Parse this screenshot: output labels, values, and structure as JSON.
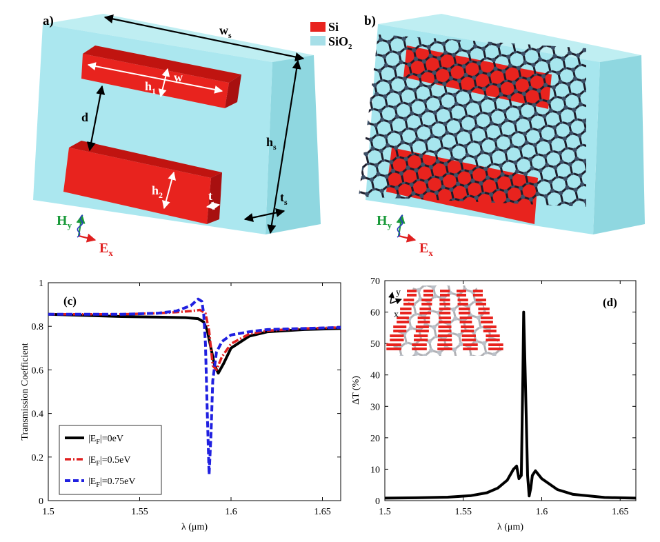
{
  "panels": {
    "a": {
      "label": "a)",
      "legend": [
        {
          "name": "Si",
          "color": "#e8231e"
        },
        {
          "name": "SiO",
          "sub": "2",
          "color": "#a7dfe8"
        }
      ],
      "dims": {
        "ws": {
          "main": "w",
          "sub": "s"
        },
        "hs": {
          "main": "h",
          "sub": "s"
        },
        "ts": {
          "main": "t",
          "sub": "s"
        },
        "h1": {
          "main": "h",
          "sub": "1"
        },
        "h2": {
          "main": "h",
          "sub": "2"
        },
        "w": "w",
        "d": "d",
        "t": "t"
      },
      "field_h": {
        "main": "H",
        "sub": "y"
      },
      "field_e": {
        "main": "E",
        "sub": "x"
      }
    },
    "b": {
      "label": "b)",
      "field_h": {
        "main": "H",
        "sub": "y"
      },
      "field_e": {
        "main": "E",
        "sub": "x"
      }
    }
  },
  "chart_data": [
    {
      "type": "line",
      "panel_label": "(c)",
      "xlabel": "λ (μm)",
      "ylabel": "Transmission Coefficient",
      "xlim": [
        1.5,
        1.66
      ],
      "ylim": [
        0,
        1
      ],
      "xticks": [
        "1.5",
        "1.55",
        "1.6",
        "1.65"
      ],
      "yticks": [
        "0",
        "0.2",
        "0.4",
        "0.6",
        "0.8",
        "1"
      ],
      "series": [
        {
          "name": "|E_F|=0eV",
          "legend_main": "|E",
          "legend_sub": "F",
          "legend_tail": "|=0eV",
          "color": "#000000",
          "dash": "solid",
          "x": [
            1.5,
            1.52,
            1.54,
            1.56,
            1.575,
            1.582,
            1.585,
            1.587,
            1.589,
            1.591,
            1.593,
            1.596,
            1.6,
            1.61,
            1.62,
            1.64,
            1.66
          ],
          "y": [
            0.855,
            0.85,
            0.845,
            0.842,
            0.84,
            0.835,
            0.82,
            0.78,
            0.7,
            0.62,
            0.585,
            0.63,
            0.7,
            0.755,
            0.775,
            0.785,
            0.79
          ]
        },
        {
          "name": "|E_F|=0.5eV",
          "legend_main": "|E",
          "legend_sub": "F",
          "legend_tail": "|=0.5eV",
          "color": "#e02020",
          "dash": "dashdot",
          "x": [
            1.5,
            1.52,
            1.54,
            1.56,
            1.57,
            1.578,
            1.583,
            1.586,
            1.588,
            1.59,
            1.592,
            1.595,
            1.6,
            1.61,
            1.62,
            1.64,
            1.66
          ],
          "y": [
            0.855,
            0.855,
            0.855,
            0.86,
            0.865,
            0.87,
            0.875,
            0.86,
            0.78,
            0.62,
            0.6,
            0.66,
            0.72,
            0.765,
            0.78,
            0.79,
            0.795
          ]
        },
        {
          "name": "|E_F|=0.75eV",
          "legend_main": "|E",
          "legend_sub": "F",
          "legend_tail": "|=0.75eV",
          "color": "#2020e0",
          "dash": "dashed",
          "x": [
            1.5,
            1.52,
            1.54,
            1.56,
            1.57,
            1.578,
            1.582,
            1.584,
            1.585,
            1.586,
            1.587,
            1.588,
            1.589,
            1.59,
            1.592,
            1.595,
            1.6,
            1.61,
            1.62,
            1.64,
            1.66
          ],
          "y": [
            0.855,
            0.855,
            0.855,
            0.86,
            0.87,
            0.895,
            0.925,
            0.915,
            0.86,
            0.72,
            0.4,
            0.12,
            0.3,
            0.55,
            0.68,
            0.73,
            0.76,
            0.775,
            0.785,
            0.79,
            0.795
          ]
        }
      ]
    },
    {
      "type": "line",
      "panel_label": "(d)",
      "xlabel": "λ (μm)",
      "ylabel": "ΔT (%)",
      "xlim": [
        1.5,
        1.66
      ],
      "ylim": [
        0,
        70
      ],
      "xticks": [
        "1.5",
        "1.55",
        "1.6",
        "1.65"
      ],
      "yticks": [
        "0",
        "10",
        "20",
        "30",
        "40",
        "50",
        "60",
        "70"
      ],
      "inset_axes": {
        "y": "y",
        "x": "x"
      },
      "series": [
        {
          "name": "ΔT",
          "color": "#000000",
          "dash": "solid",
          "x": [
            1.5,
            1.52,
            1.54,
            1.555,
            1.565,
            1.572,
            1.578,
            1.582,
            1.584,
            1.5855,
            1.587,
            1.588,
            1.5885,
            1.5895,
            1.591,
            1.592,
            1.593,
            1.594,
            1.596,
            1.6,
            1.61,
            1.62,
            1.64,
            1.66
          ],
          "y": [
            0.8,
            0.9,
            1.1,
            1.6,
            2.5,
            4.0,
            6.5,
            10.0,
            11.0,
            7.0,
            8.0,
            40.0,
            60.0,
            40.0,
            8.0,
            1.5,
            4.0,
            8.0,
            9.5,
            7.0,
            3.5,
            2.0,
            1.0,
            0.8
          ]
        }
      ]
    }
  ]
}
